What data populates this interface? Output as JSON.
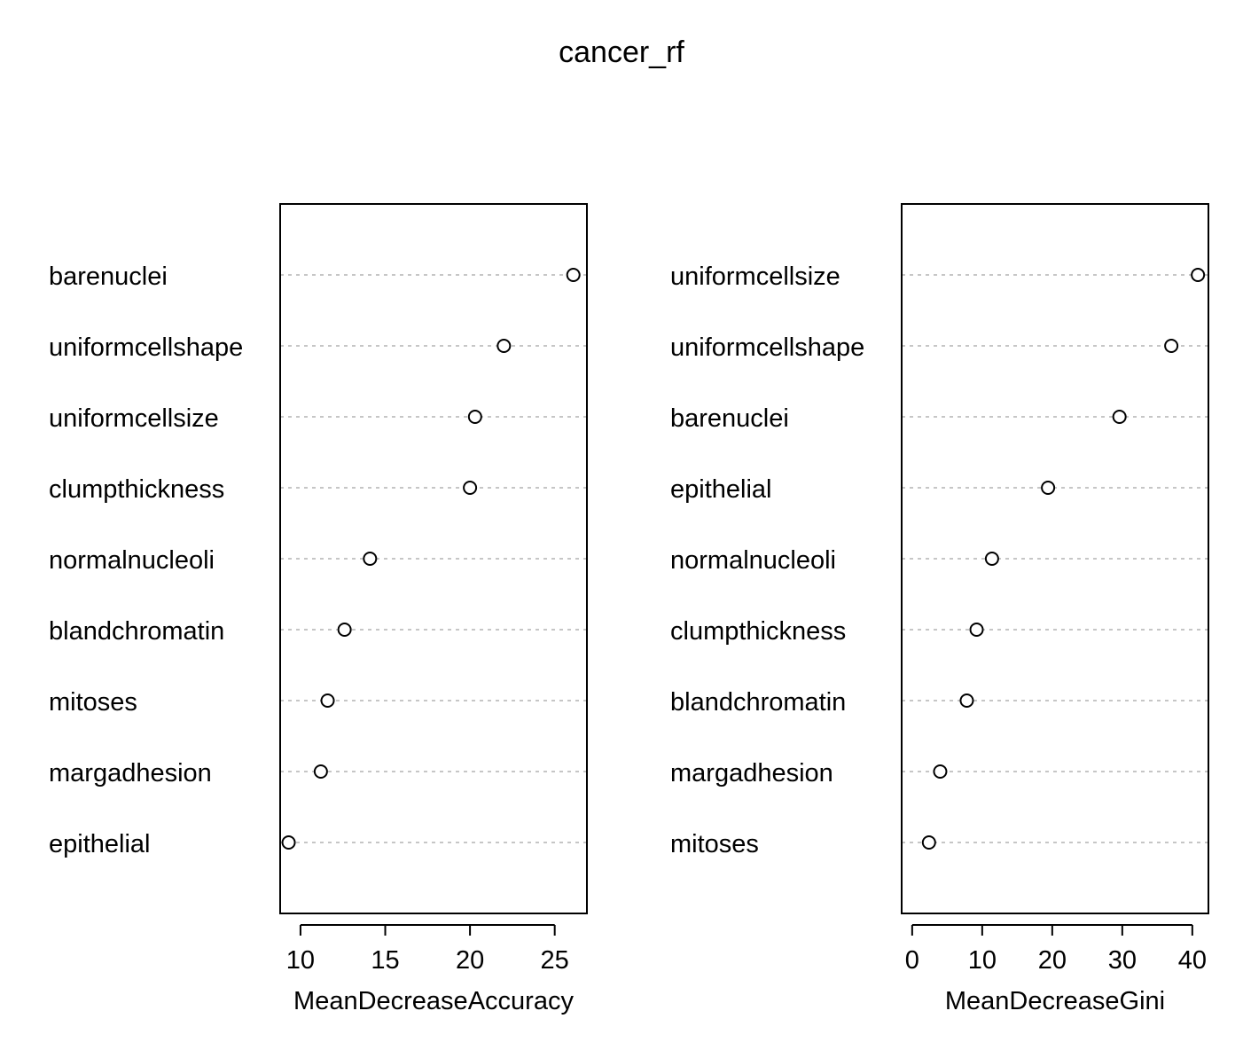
{
  "chart_data": {
    "type": "scatter",
    "title": "cancer_rf",
    "panels": [
      {
        "xlabel": "MeanDecreaseAccuracy",
        "xlim": [
          8.8,
          26.9
        ],
        "ticks": [
          10,
          15,
          20,
          25
        ],
        "categories": [
          "barenuclei",
          "uniformcellshape",
          "uniformcellsize",
          "clumpthickness",
          "normalnucleoli",
          "blandchromatin",
          "mitoses",
          "margadhesion",
          "epithelial"
        ],
        "values": [
          26.1,
          22.0,
          20.3,
          20.0,
          14.1,
          12.6,
          11.6,
          11.2,
          9.3
        ]
      },
      {
        "xlabel": "MeanDecreaseGini",
        "xlim": [
          -1.5,
          42.3
        ],
        "ticks": [
          0,
          10,
          20,
          30,
          40
        ],
        "categories": [
          "uniformcellsize",
          "uniformcellshape",
          "barenuclei",
          "epithelial",
          "normalnucleoli",
          "clumpthickness",
          "blandchromatin",
          "margadhesion",
          "mitoses"
        ],
        "values": [
          40.8,
          37.0,
          29.6,
          19.4,
          11.4,
          9.2,
          7.8,
          4.0,
          2.4
        ]
      }
    ]
  }
}
